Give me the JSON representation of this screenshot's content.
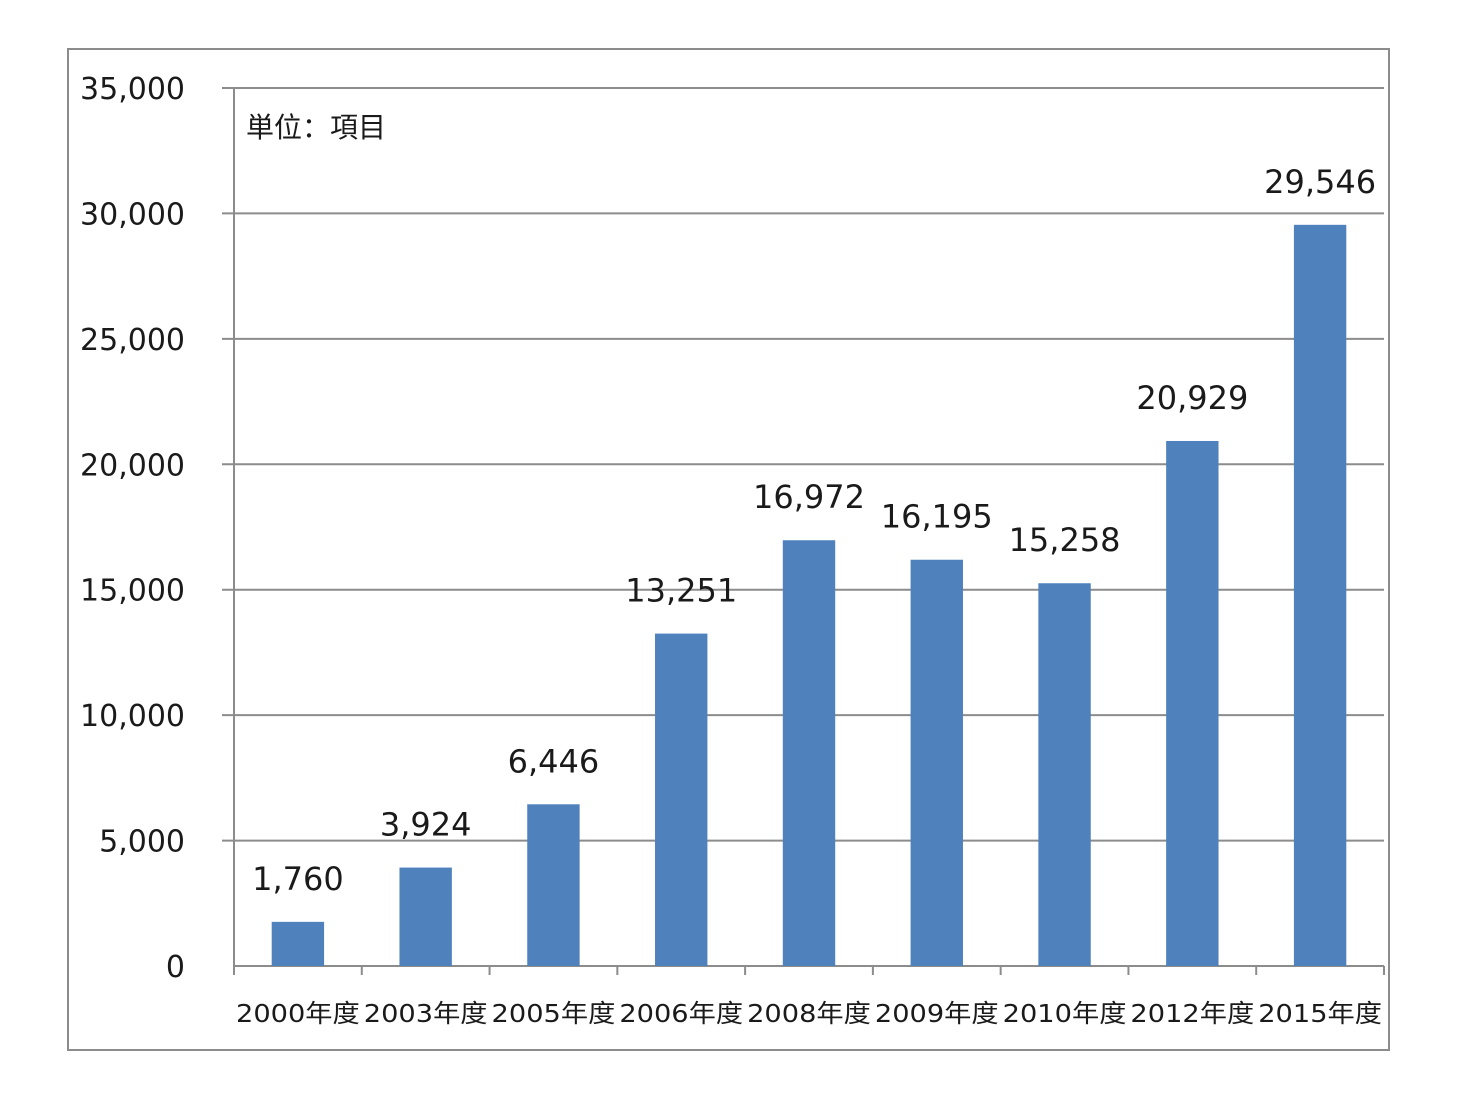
{
  "chart_data": {
    "type": "bar",
    "unit_note": "単位：項目",
    "categories": [
      "2000年度",
      "2003年度",
      "2005年度",
      "2006年度",
      "2008年度",
      "2009年度",
      "2010年度",
      "2012年度",
      "2015年度"
    ],
    "values": [
      1760,
      3924,
      6446,
      13251,
      16972,
      16195,
      15258,
      20929,
      29546
    ],
    "value_labels": [
      "1,760",
      "3,924",
      "6,446",
      "13,251",
      "16,972",
      "16,195",
      "15,258",
      "20,929",
      "29,546"
    ],
    "yticks": [
      0,
      5000,
      10000,
      15000,
      20000,
      25000,
      30000,
      35000
    ],
    "ytick_labels": [
      "0",
      "5,000",
      "10,000",
      "15,000",
      "20,000",
      "25,000",
      "30,000",
      "35,000"
    ],
    "ylim": [
      0,
      35000
    ],
    "grid": true,
    "legend": "none",
    "bar_color": "#4f81bd",
    "grid_color": "#8c8c8c"
  }
}
